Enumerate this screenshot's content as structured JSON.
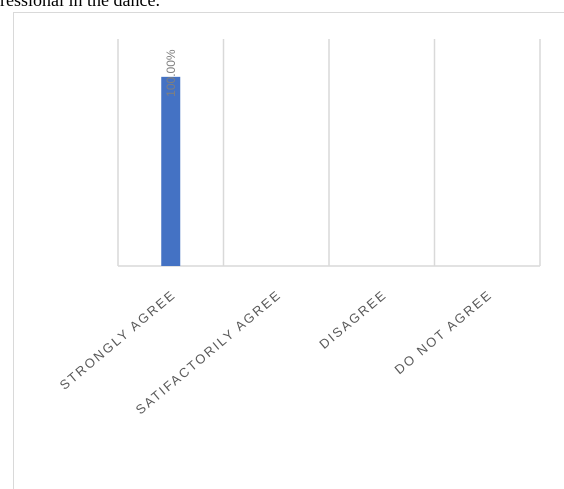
{
  "caption": "ressional in the dance.",
  "chart_data": {
    "type": "bar",
    "categories": [
      "STRONGLY AGREE",
      "SATIFACTORILY AGREE",
      "DISAGREE",
      "DO NOT AGREE"
    ],
    "series": [
      {
        "values": [
          100,
          0,
          0,
          0
        ],
        "data_labels": [
          "100.00%",
          "",
          "",
          ""
        ],
        "color": "#4472c4"
      }
    ],
    "ylim": [
      0,
      120
    ],
    "grid": "vertical",
    "axis_color": "#d9d9d9",
    "tick_label_color": "#595959",
    "data_label_color": "#7f7f7f"
  }
}
